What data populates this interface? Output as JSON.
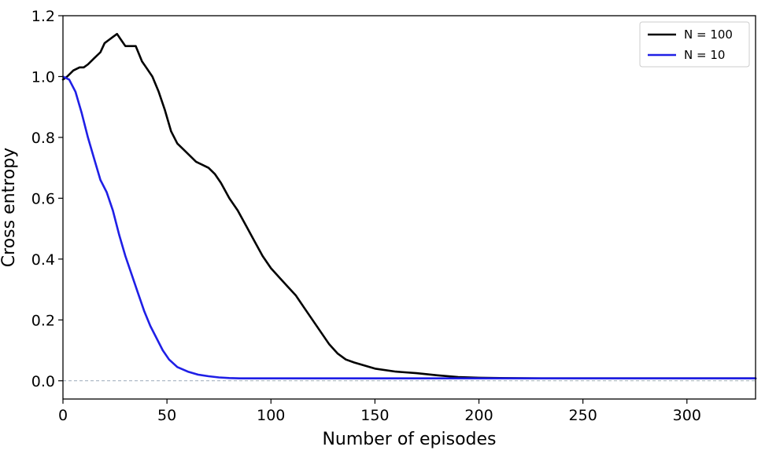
{
  "chart_data": {
    "type": "line",
    "title": "",
    "xlabel": "Number of episodes",
    "ylabel": "Cross entropy",
    "xlim": [
      0,
      333
    ],
    "ylim": [
      -0.06,
      1.2
    ],
    "xticks": [
      0,
      50,
      100,
      150,
      200,
      250,
      300
    ],
    "yticks": [
      0.0,
      0.2,
      0.4,
      0.6,
      0.8,
      1.0,
      1.2
    ],
    "xtick_labels": [
      "0",
      "50",
      "100",
      "150",
      "200",
      "250",
      "300"
    ],
    "ytick_labels": [
      "0.0",
      "0.2",
      "0.4",
      "0.6",
      "0.8",
      "1.0",
      "1.2"
    ],
    "grid": false,
    "legend_position": "top-right",
    "reference_line": {
      "y": 0.0,
      "color": "#9aa8b8",
      "style": "dashed"
    },
    "series": [
      {
        "name": "N = 100",
        "color": "#000000",
        "x": [
          0,
          2,
          5,
          8,
          10,
          12,
          15,
          18,
          20,
          22,
          24,
          26,
          28,
          30,
          32,
          35,
          38,
          40,
          43,
          46,
          49,
          52,
          55,
          58,
          61,
          64,
          67,
          70,
          73,
          76,
          80,
          84,
          88,
          92,
          96,
          100,
          104,
          108,
          112,
          116,
          120,
          124,
          128,
          132,
          136,
          140,
          145,
          150,
          160,
          170,
          180,
          190,
          200,
          210,
          230,
          260,
          300,
          333
        ],
        "y": [
          0.99,
          1.0,
          1.02,
          1.03,
          1.03,
          1.04,
          1.06,
          1.08,
          1.11,
          1.12,
          1.13,
          1.14,
          1.12,
          1.1,
          1.1,
          1.1,
          1.05,
          1.03,
          1.0,
          0.95,
          0.89,
          0.82,
          0.78,
          0.76,
          0.74,
          0.72,
          0.71,
          0.7,
          0.68,
          0.65,
          0.6,
          0.56,
          0.51,
          0.46,
          0.41,
          0.37,
          0.34,
          0.31,
          0.28,
          0.24,
          0.2,
          0.16,
          0.12,
          0.09,
          0.07,
          0.06,
          0.05,
          0.04,
          0.03,
          0.025,
          0.018,
          0.012,
          0.01,
          0.009,
          0.008,
          0.008,
          0.008,
          0.008
        ]
      },
      {
        "name": "N = 10",
        "color": "#1f1fe6",
        "x": [
          0,
          3,
          6,
          9,
          12,
          15,
          18,
          21,
          24,
          27,
          30,
          33,
          36,
          39,
          42,
          45,
          48,
          51,
          55,
          60,
          65,
          70,
          75,
          80,
          85,
          90,
          100,
          120,
          150,
          200,
          250,
          300,
          333
        ],
        "y": [
          1.0,
          0.99,
          0.95,
          0.88,
          0.8,
          0.73,
          0.66,
          0.62,
          0.56,
          0.48,
          0.41,
          0.35,
          0.29,
          0.23,
          0.18,
          0.14,
          0.1,
          0.07,
          0.045,
          0.03,
          0.02,
          0.015,
          0.011,
          0.009,
          0.008,
          0.008,
          0.008,
          0.008,
          0.008,
          0.008,
          0.008,
          0.008,
          0.008
        ]
      }
    ]
  }
}
